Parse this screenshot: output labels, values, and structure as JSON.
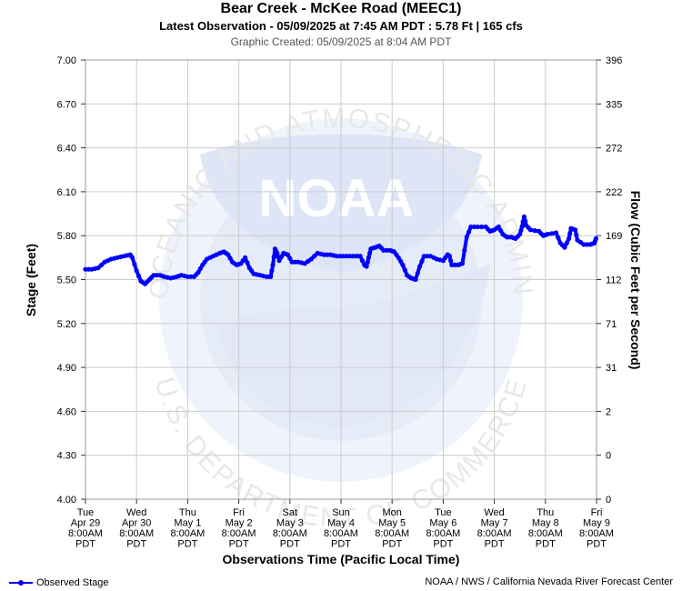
{
  "header": {
    "title": "Bear Creek - McKee Road (MEEC1)",
    "subtitle": "Latest Observation - 05/09/2025 at 7:45 AM PDT : 5.78 Ft | 165 cfs",
    "created": "Graphic Created: 05/09/2025 at 8:04 AM PDT"
  },
  "watermark": {
    "logo_text": "NOAA",
    "ring_text_top": "NATIONAL OCEANIC AND ATMOSPHERIC ADMINISTRATION",
    "ring_text_bottom": "U.S. DEPARTMENT OF COMMERCE"
  },
  "legend": {
    "label": "Observed Stage",
    "color": "#0000ff"
  },
  "credit": "NOAA / NWS / California Nevada River Forecast Center",
  "chart_data": {
    "type": "line",
    "xlabel": "Observations Time (Pacific Local Time)",
    "ylabel": "Stage (Feet)",
    "y2label": "Flow (Cubic Feet per Second)",
    "ylim": [
      4.0,
      7.0
    ],
    "y_ticks": [
      "4.00",
      "4.30",
      "4.60",
      "4.90",
      "5.20",
      "5.50",
      "5.80",
      "6.10",
      "6.40",
      "6.70",
      "7.00"
    ],
    "y2_ticks": [
      "0",
      "0",
      "2",
      "31",
      "71",
      "112",
      "169",
      "222",
      "272",
      "335",
      "396"
    ],
    "x_range": [
      "2025-04-29 08:00",
      "2025-05-09 08:00"
    ],
    "x_ticks": [
      [
        "Tue",
        "Apr 29",
        "8:00AM",
        "PDT"
      ],
      [
        "Wed",
        "Apr 30",
        "8:00AM",
        "PDT"
      ],
      [
        "Thu",
        "May 1",
        "8:00AM",
        "PDT"
      ],
      [
        "Fri",
        "May 2",
        "8:00AM",
        "PDT"
      ],
      [
        "Sat",
        "May 3",
        "8:00AM",
        "PDT"
      ],
      [
        "Sun",
        "May 4",
        "8:00AM",
        "PDT"
      ],
      [
        "Mon",
        "May 5",
        "8:00AM",
        "PDT"
      ],
      [
        "Tue",
        "May 6",
        "8:00AM",
        "PDT"
      ],
      [
        "Wed",
        "May 7",
        "8:00AM",
        "PDT"
      ],
      [
        "Thu",
        "May 8",
        "8:00AM",
        "PDT"
      ],
      [
        "Fri",
        "May 9",
        "8:00AM",
        "PDT"
      ]
    ],
    "grid": true,
    "series": [
      {
        "name": "Observed Stage",
        "color": "#0000ff",
        "points": [
          [
            "2025-04-29 08:00",
            5.57
          ],
          [
            "2025-04-29 11:00",
            5.57
          ],
          [
            "2025-04-29 14:00",
            5.58
          ],
          [
            "2025-04-29 17:00",
            5.62
          ],
          [
            "2025-04-29 20:00",
            5.64
          ],
          [
            "2025-04-29 23:00",
            5.65
          ],
          [
            "2025-04-30 02:00",
            5.66
          ],
          [
            "2025-04-30 05:00",
            5.67
          ],
          [
            "2025-04-30 06:00",
            5.65
          ],
          [
            "2025-04-30 08:00",
            5.56
          ],
          [
            "2025-04-30 10:00",
            5.49
          ],
          [
            "2025-04-30 12:00",
            5.47
          ],
          [
            "2025-04-30 14:00",
            5.5
          ],
          [
            "2025-04-30 16:00",
            5.53
          ],
          [
            "2025-04-30 19:00",
            5.53
          ],
          [
            "2025-04-30 21:00",
            5.52
          ],
          [
            "2025-05-01 00:00",
            5.51
          ],
          [
            "2025-05-01 03:00",
            5.52
          ],
          [
            "2025-05-01 05:00",
            5.53
          ],
          [
            "2025-05-01 08:00",
            5.52
          ],
          [
            "2025-05-01 11:00",
            5.52
          ],
          [
            "2025-05-01 13:00",
            5.55
          ],
          [
            "2025-05-01 15:00",
            5.6
          ],
          [
            "2025-05-01 17:00",
            5.64
          ],
          [
            "2025-05-01 20:00",
            5.66
          ],
          [
            "2025-05-01 23:00",
            5.68
          ],
          [
            "2025-05-02 01:00",
            5.69
          ],
          [
            "2025-05-02 03:00",
            5.67
          ],
          [
            "2025-05-02 05:00",
            5.62
          ],
          [
            "2025-05-02 07:00",
            5.6
          ],
          [
            "2025-05-02 09:00",
            5.61
          ],
          [
            "2025-05-02 11:00",
            5.65
          ],
          [
            "2025-05-02 13:00",
            5.58
          ],
          [
            "2025-05-02 15:00",
            5.54
          ],
          [
            "2025-05-02 18:00",
            5.53
          ],
          [
            "2025-05-02 21:00",
            5.52
          ],
          [
            "2025-05-02 23:00",
            5.52
          ],
          [
            "2025-05-03 00:00",
            5.6
          ],
          [
            "2025-05-03 01:00",
            5.71
          ],
          [
            "2025-05-03 02:00",
            5.68
          ],
          [
            "2025-05-03 03:00",
            5.63
          ],
          [
            "2025-05-03 05:00",
            5.68
          ],
          [
            "2025-05-03 07:00",
            5.67
          ],
          [
            "2025-05-03 09:00",
            5.62
          ],
          [
            "2025-05-03 12:00",
            5.62
          ],
          [
            "2025-05-03 15:00",
            5.61
          ],
          [
            "2025-05-03 18:00",
            5.64
          ],
          [
            "2025-05-03 21:00",
            5.68
          ],
          [
            "2025-05-04 00:00",
            5.67
          ],
          [
            "2025-05-04 03:00",
            5.67
          ],
          [
            "2025-05-04 06:00",
            5.66
          ],
          [
            "2025-05-04 09:00",
            5.66
          ],
          [
            "2025-05-04 12:00",
            5.66
          ],
          [
            "2025-05-04 15:00",
            5.66
          ],
          [
            "2025-05-04 17:00",
            5.66
          ],
          [
            "2025-05-04 19:00",
            5.6
          ],
          [
            "2025-05-04 20:00",
            5.59
          ],
          [
            "2025-05-04 21:00",
            5.65
          ],
          [
            "2025-05-04 22:00",
            5.71
          ],
          [
            "2025-05-05 00:00",
            5.72
          ],
          [
            "2025-05-05 02:00",
            5.73
          ],
          [
            "2025-05-05 04:00",
            5.7
          ],
          [
            "2025-05-05 07:00",
            5.7
          ],
          [
            "2025-05-05 09:00",
            5.69
          ],
          [
            "2025-05-05 11:00",
            5.65
          ],
          [
            "2025-05-05 13:00",
            5.6
          ],
          [
            "2025-05-05 15:00",
            5.53
          ],
          [
            "2025-05-05 17:00",
            5.51
          ],
          [
            "2025-05-05 19:00",
            5.5
          ],
          [
            "2025-05-05 21:00",
            5.59
          ],
          [
            "2025-05-05 23:00",
            5.66
          ],
          [
            "2025-05-06 02:00",
            5.66
          ],
          [
            "2025-05-06 05:00",
            5.64
          ],
          [
            "2025-05-06 08:00",
            5.63
          ],
          [
            "2025-05-06 10:00",
            5.67
          ],
          [
            "2025-05-06 11:00",
            5.66
          ],
          [
            "2025-05-06 12:00",
            5.6
          ],
          [
            "2025-05-06 15:00",
            5.6
          ],
          [
            "2025-05-06 17:00",
            5.61
          ],
          [
            "2025-05-06 19:00",
            5.79
          ],
          [
            "2025-05-06 21:00",
            5.86
          ],
          [
            "2025-05-07 00:00",
            5.86
          ],
          [
            "2025-05-07 04:00",
            5.86
          ],
          [
            "2025-05-07 06:00",
            5.83
          ],
          [
            "2025-05-07 08:00",
            5.84
          ],
          [
            "2025-05-07 10:00",
            5.86
          ],
          [
            "2025-05-07 12:00",
            5.81
          ],
          [
            "2025-05-07 14:00",
            5.79
          ],
          [
            "2025-05-07 16:00",
            5.79
          ],
          [
            "2025-05-07 18:00",
            5.78
          ],
          [
            "2025-05-07 20:00",
            5.81
          ],
          [
            "2025-05-07 21:00",
            5.86
          ],
          [
            "2025-05-07 22:00",
            5.93
          ],
          [
            "2025-05-07 23:00",
            5.87
          ],
          [
            "2025-05-08 01:00",
            5.84
          ],
          [
            "2025-05-08 05:00",
            5.83
          ],
          [
            "2025-05-08 07:00",
            5.8
          ],
          [
            "2025-05-08 09:00",
            5.81
          ],
          [
            "2025-05-08 13:00",
            5.82
          ],
          [
            "2025-05-08 15:00",
            5.75
          ],
          [
            "2025-05-08 17:00",
            5.72
          ],
          [
            "2025-05-08 19:00",
            5.78
          ],
          [
            "2025-05-08 20:00",
            5.85
          ],
          [
            "2025-05-08 22:00",
            5.84
          ],
          [
            "2025-05-08 23:00",
            5.77
          ],
          [
            "2025-05-09 02:00",
            5.74
          ],
          [
            "2025-05-09 05:00",
            5.74
          ],
          [
            "2025-05-09 07:00",
            5.75
          ],
          [
            "2025-05-09 07:45",
            5.78
          ]
        ]
      }
    ]
  }
}
